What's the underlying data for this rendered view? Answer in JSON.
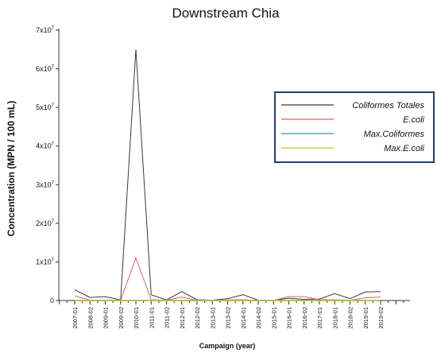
{
  "chart_data": {
    "type": "line",
    "title": "Downstream Chia",
    "xlabel": "Campaign (year)",
    "ylabel": "Concentration (MPN / 100 mL)",
    "ylim": [
      0,
      70000000
    ],
    "yticks": [
      {
        "value": 0,
        "label": "0",
        "exp": ""
      },
      {
        "value": 10000000,
        "label": "1x10",
        "exp": "7"
      },
      {
        "value": 20000000,
        "label": "2x10",
        "exp": "7"
      },
      {
        "value": 30000000,
        "label": "3x10",
        "exp": "7"
      },
      {
        "value": 40000000,
        "label": "4x10",
        "exp": "7"
      },
      {
        "value": 50000000,
        "label": "5x10",
        "exp": "7"
      },
      {
        "value": 60000000,
        "label": "6x10",
        "exp": "7"
      },
      {
        "value": 70000000,
        "label": "7x10",
        "exp": "7"
      }
    ],
    "categories": [
      "2007-01",
      "2008-02",
      "2009-01",
      "2009-02",
      "2010-01",
      "2011-01",
      "2011-02",
      "2012-01",
      "2012-02",
      "2013-01",
      "2013-02",
      "2014-01",
      "2014-02",
      "2015-01",
      "2016-01",
      "2016-02",
      "2017-01",
      "2018-01",
      "2018-02",
      "2019-01",
      "2019-02"
    ],
    "series": [
      {
        "name": "Coliformes Totales",
        "color": "#3a3a3a",
        "values": [
          2800000,
          800000,
          1000000,
          150000,
          65000000,
          1500000,
          150000,
          2300000,
          200000,
          100000,
          500000,
          1500000,
          100000,
          50000,
          600000,
          300000,
          400000,
          1800000,
          500000,
          2200000,
          2300000
        ]
      },
      {
        "name": "E.coli",
        "color": "#e06060",
        "values": [
          1200000,
          100000,
          100000,
          50000,
          11000000,
          200000,
          50000,
          900000,
          50000,
          30000,
          150000,
          200000,
          30000,
          20000,
          1000000,
          1000000,
          200000,
          200000,
          50000,
          700000,
          900000
        ]
      },
      {
        "name": "Max.Coliformes",
        "color": "#3a8fb0",
        "values": [
          20000,
          20000,
          20000,
          20000,
          20000,
          20000,
          20000,
          20000,
          20000,
          20000,
          20000,
          20000,
          20000,
          20000,
          20000,
          20000,
          20000,
          20000,
          20000,
          20000,
          20000
        ]
      },
      {
        "name": "Max.E.coli",
        "color": "#c8c820",
        "values": [
          2000,
          2000,
          2000,
          2000,
          2000,
          2000,
          2000,
          2000,
          2000,
          2000,
          2000,
          2000,
          2000,
          2000,
          2000,
          2000,
          2000,
          2000,
          2000,
          2000,
          2000
        ]
      }
    ],
    "legend_position": "right"
  }
}
